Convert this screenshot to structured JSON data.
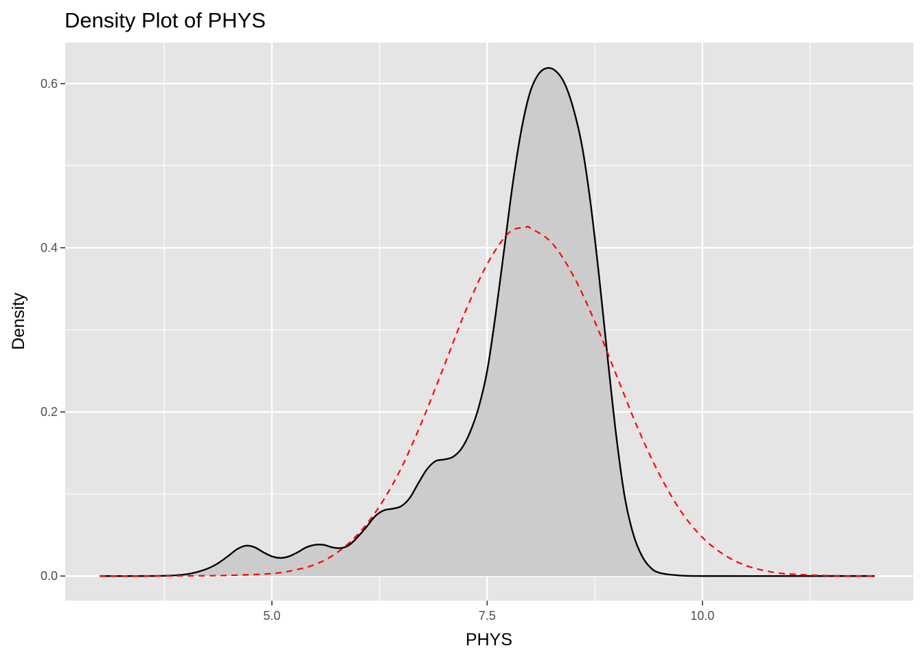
{
  "chart_data": {
    "type": "density",
    "title": "Density Plot of PHYS",
    "xlabel": "PHYS",
    "ylabel": "Density",
    "xlim": [
      2.6,
      12.45
    ],
    "ylim": [
      -0.03,
      0.65
    ],
    "x_ticks": [
      5.0,
      7.5,
      10.0
    ],
    "x_tick_labels": [
      "5.0",
      "7.5",
      "10.0"
    ],
    "y_ticks": [
      0.0,
      0.2,
      0.4,
      0.6
    ],
    "y_tick_labels": [
      "0.0",
      "0.2",
      "0.4",
      "0.6"
    ],
    "grid": true,
    "legend": "none",
    "colors": {
      "panel": "#e5e5e5",
      "grid": "#ffffff",
      "density_fill": "#cccccc",
      "density_line": "#000000",
      "normal_line": "#ff0000",
      "tick_label": "#4d4d4d"
    },
    "series": [
      {
        "style": "filled-solid",
        "points": [
          [
            3.0,
            0.0
          ],
          [
            3.5,
            0.0
          ],
          [
            3.8,
            0.0005
          ],
          [
            4.0,
            0.002
          ],
          [
            4.2,
            0.007
          ],
          [
            4.35,
            0.014
          ],
          [
            4.5,
            0.025
          ],
          [
            4.6,
            0.033
          ],
          [
            4.7,
            0.037
          ],
          [
            4.8,
            0.035
          ],
          [
            4.9,
            0.029
          ],
          [
            5.0,
            0.024
          ],
          [
            5.1,
            0.022
          ],
          [
            5.2,
            0.024
          ],
          [
            5.3,
            0.029
          ],
          [
            5.4,
            0.035
          ],
          [
            5.5,
            0.038
          ],
          [
            5.6,
            0.038
          ],
          [
            5.7,
            0.035
          ],
          [
            5.8,
            0.034
          ],
          [
            5.9,
            0.038
          ],
          [
            6.0,
            0.048
          ],
          [
            6.1,
            0.06
          ],
          [
            6.2,
            0.073
          ],
          [
            6.3,
            0.08
          ],
          [
            6.4,
            0.082
          ],
          [
            6.5,
            0.085
          ],
          [
            6.6,
            0.095
          ],
          [
            6.7,
            0.113
          ],
          [
            6.8,
            0.13
          ],
          [
            6.9,
            0.14
          ],
          [
            7.0,
            0.142
          ],
          [
            7.1,
            0.145
          ],
          [
            7.2,
            0.155
          ],
          [
            7.3,
            0.175
          ],
          [
            7.4,
            0.205
          ],
          [
            7.5,
            0.25
          ],
          [
            7.6,
            0.32
          ],
          [
            7.7,
            0.4
          ],
          [
            7.8,
            0.48
          ],
          [
            7.9,
            0.545
          ],
          [
            8.0,
            0.59
          ],
          [
            8.1,
            0.612
          ],
          [
            8.2,
            0.619
          ],
          [
            8.3,
            0.615
          ],
          [
            8.4,
            0.6
          ],
          [
            8.5,
            0.57
          ],
          [
            8.6,
            0.525
          ],
          [
            8.7,
            0.455
          ],
          [
            8.8,
            0.365
          ],
          [
            8.9,
            0.265
          ],
          [
            9.0,
            0.17
          ],
          [
            9.1,
            0.095
          ],
          [
            9.2,
            0.05
          ],
          [
            9.3,
            0.024
          ],
          [
            9.4,
            0.01
          ],
          [
            9.5,
            0.004
          ],
          [
            9.7,
            0.001
          ],
          [
            10.0,
            0.0
          ],
          [
            11.0,
            0.0
          ],
          [
            12.0,
            0.0
          ]
        ]
      },
      {
        "style": "dashed",
        "points": [
          [
            3.0,
            0.0
          ],
          [
            4.0,
            0.0002
          ],
          [
            4.5,
            0.0008
          ],
          [
            5.0,
            0.003
          ],
          [
            5.25,
            0.007
          ],
          [
            5.5,
            0.014
          ],
          [
            5.75,
            0.028
          ],
          [
            6.0,
            0.051
          ],
          [
            6.25,
            0.085
          ],
          [
            6.5,
            0.131
          ],
          [
            6.75,
            0.19
          ],
          [
            7.0,
            0.256
          ],
          [
            7.25,
            0.323
          ],
          [
            7.5,
            0.38
          ],
          [
            7.75,
            0.418
          ],
          [
            7.95,
            0.425
          ],
          [
            8.0,
            0.424
          ],
          [
            8.25,
            0.406
          ],
          [
            8.5,
            0.366
          ],
          [
            8.75,
            0.31
          ],
          [
            9.0,
            0.245
          ],
          [
            9.25,
            0.18
          ],
          [
            9.5,
            0.124
          ],
          [
            9.75,
            0.079
          ],
          [
            10.0,
            0.047
          ],
          [
            10.25,
            0.026
          ],
          [
            10.5,
            0.013
          ],
          [
            10.75,
            0.006
          ],
          [
            11.0,
            0.0025
          ],
          [
            11.5,
            0.0004
          ],
          [
            12.0,
            0.0
          ]
        ]
      }
    ]
  }
}
